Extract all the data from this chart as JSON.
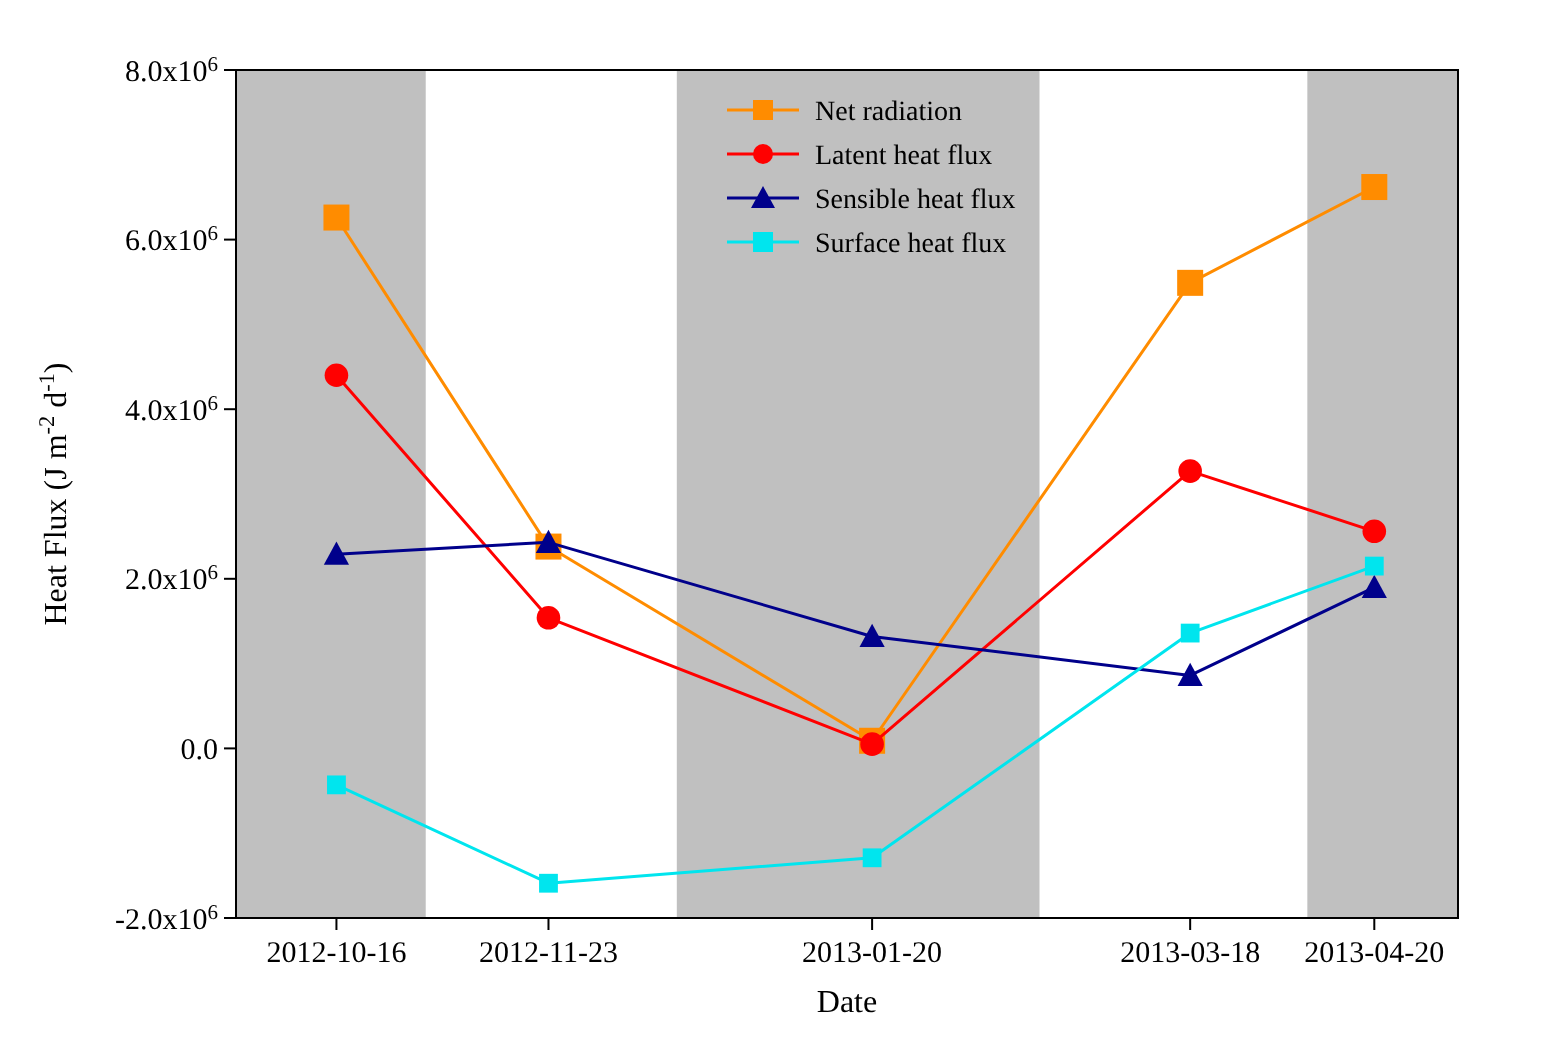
{
  "chart_data": {
    "type": "line",
    "xlabel": "Date",
    "ylabel": "Heat Flux (J m$^{-2}$ d$^{-1}$)",
    "x": [
      "2012-10-16",
      "2012-11-23",
      "2013-01-20",
      "2013-03-18",
      "2013-04-20"
    ],
    "xlim": [
      "2012-09-28",
      "2013-05-05"
    ],
    "xticks": [
      "2012-10-16",
      "2012-11-23",
      "2013-01-20",
      "2013-03-18",
      "2013-04-20"
    ],
    "ylim": [
      -2000000,
      8000000
    ],
    "yticks": [
      {
        "value": -2000000,
        "label": "-2.0x10$^{6}$"
      },
      {
        "value": 0,
        "label": "0.0"
      },
      {
        "value": 2000000,
        "label": "2.0x10$^{6}$"
      },
      {
        "value": 4000000,
        "label": "4.0x10$^{6}$"
      },
      {
        "value": 6000000,
        "label": "6.0x10$^{6}$"
      },
      {
        "value": 8000000,
        "label": "8.0x10$^{6}$"
      }
    ],
    "series": [
      {
        "name": "Net radiation",
        "color": "#ff8c00",
        "marker": "square",
        "values": [
          6260000,
          2380000,
          90000,
          5490000,
          6620000
        ]
      },
      {
        "name": "Latent heat flux",
        "color": "#ff0000",
        "marker": "circle",
        "values": [
          4400000,
          1540000,
          50000,
          3270000,
          2560000
        ]
      },
      {
        "name": "Sensible heat flux",
        "color": "#00008b",
        "marker": "triangle",
        "values": [
          2290000,
          2430000,
          1320000,
          860000,
          1900000
        ]
      },
      {
        "name": "Surface heat flux",
        "color": "#00e5ee",
        "marker": "square",
        "values": [
          -430000,
          -1590000,
          -1290000,
          1360000,
          2150000
        ]
      }
    ],
    "bands": [
      {
        "axis": "x",
        "from": "2012-09-28",
        "to": "2012-11-01",
        "color": "#c0c0c0"
      },
      {
        "axis": "x",
        "from": "2012-12-16",
        "to": "2013-02-19",
        "color": "#c0c0c0"
      },
      {
        "axis": "x",
        "from": "2013-04-08",
        "to": "2013-05-05",
        "color": "#c0c0c0"
      }
    ],
    "legend": "top",
    "line_style": "solid",
    "grid": false
  }
}
